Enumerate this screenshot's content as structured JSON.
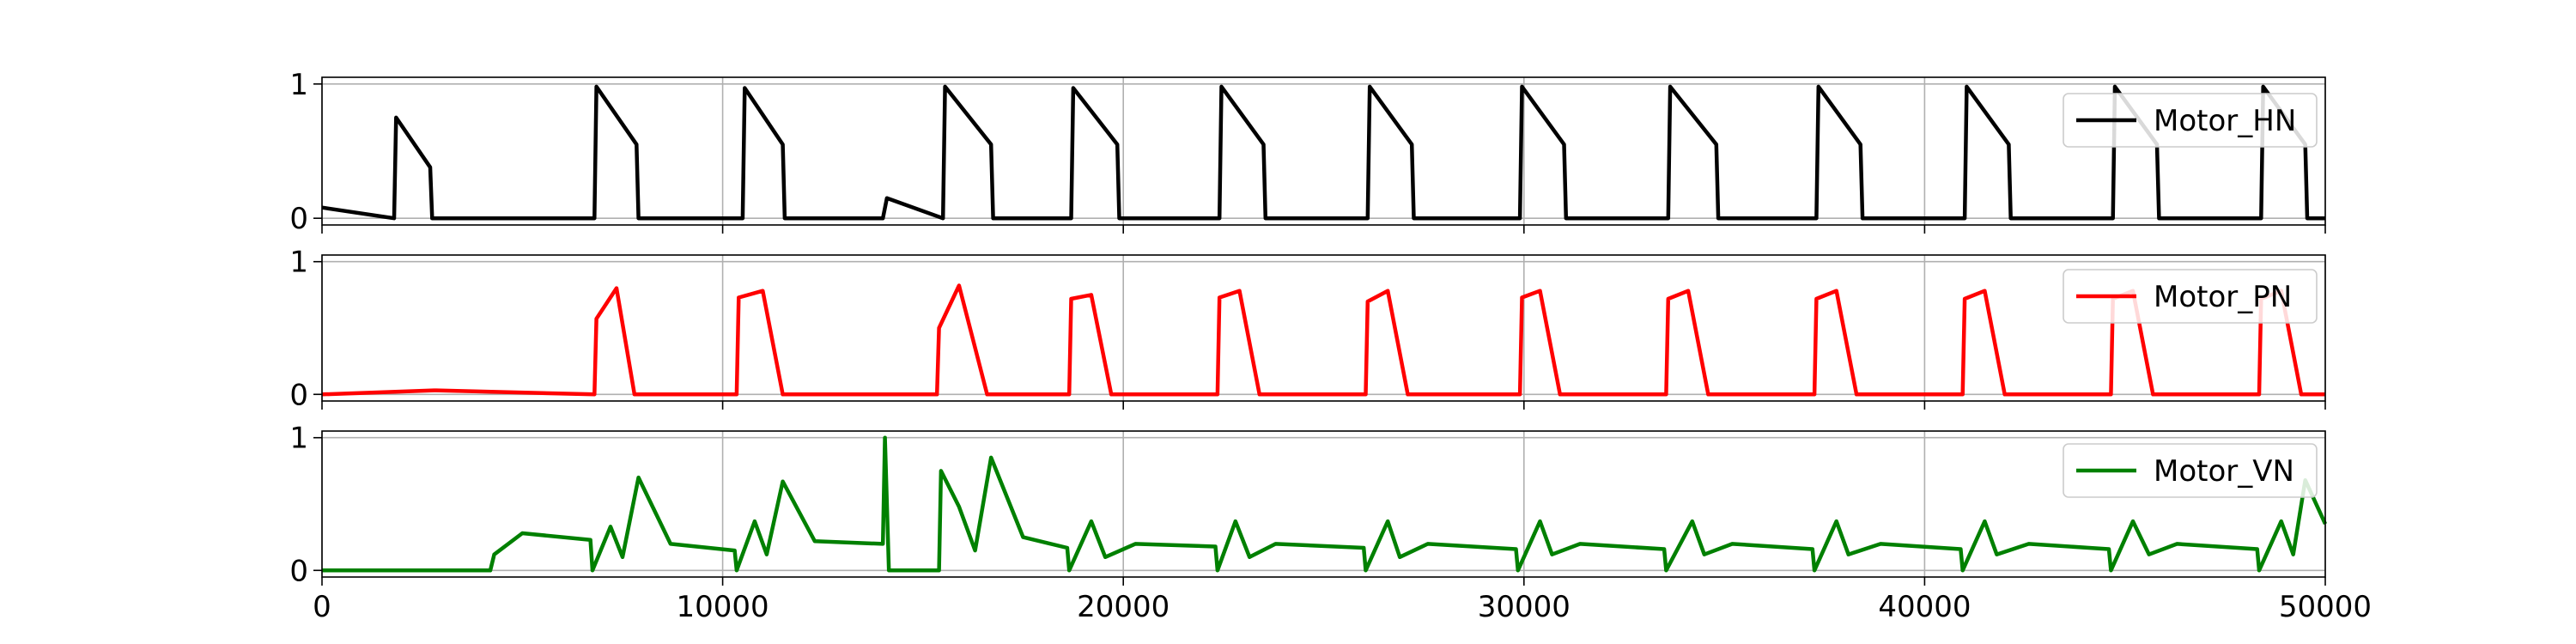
{
  "chart_data": [
    {
      "type": "line",
      "title": "",
      "xlabel": "",
      "ylabel": "",
      "xlim": [
        0,
        50000
      ],
      "ylim": [
        0,
        1
      ],
      "yticks": [
        "0",
        "1"
      ],
      "xticks": [],
      "grid": true,
      "legend_position": "top-right",
      "series": [
        {
          "name": "Motor_HN",
          "color": "#000000",
          "pattern": "rectified-burst",
          "x": [
            0,
            1800,
            1850,
            2700,
            2750,
            6800,
            6850,
            7850,
            7900,
            10500,
            10550,
            11500,
            11550,
            14000,
            14100,
            15500,
            15550,
            16700,
            16750,
            18700,
            18750,
            19850,
            19900,
            22400,
            22450,
            23500,
            23550,
            26100,
            26150,
            27200,
            27250,
            29900,
            29950,
            31000,
            31050,
            33600,
            33650,
            34800,
            34850,
            37300,
            37350,
            38400,
            38450,
            41000,
            41050,
            42100,
            42150,
            44700,
            44750,
            45800,
            45850,
            48400,
            48450,
            49500,
            49550,
            50000
          ],
          "values": [
            0.08,
            0.0,
            0.75,
            0.38,
            0.0,
            0.0,
            0.98,
            0.55,
            0.0,
            0.0,
            0.97,
            0.55,
            0.0,
            0.0,
            0.15,
            0.0,
            0.98,
            0.55,
            0.0,
            0.0,
            0.97,
            0.55,
            0.0,
            0.0,
            0.98,
            0.55,
            0.0,
            0.0,
            0.98,
            0.55,
            0.0,
            0.0,
            0.98,
            0.55,
            0.0,
            0.0,
            0.98,
            0.55,
            0.0,
            0.0,
            0.98,
            0.55,
            0.0,
            0.0,
            0.98,
            0.55,
            0.0,
            0.0,
            0.98,
            0.55,
            0.0,
            0.0,
            0.98,
            0.55,
            0.0,
            0.0
          ]
        },
        {
          "name": "Motor_PN",
          "color": "#ff0000",
          "pattern": "spike-then-bump",
          "x": [
            0,
            2800,
            6800,
            6850,
            7350,
            7800,
            10350,
            10400,
            11000,
            11500,
            15350,
            15400,
            15900,
            16600,
            18650,
            18700,
            19200,
            19700,
            22350,
            22400,
            22900,
            23400,
            26050,
            26100,
            26600,
            27100,
            29900,
            29950,
            30400,
            30900,
            33550,
            33600,
            34100,
            34600,
            37250,
            37300,
            37800,
            38300,
            40950,
            41000,
            41500,
            42000,
            44650,
            44700,
            45200,
            45700,
            48350,
            48400,
            48900,
            49400,
            50000
          ],
          "values": [
            0.0,
            0.03,
            0.0,
            0.57,
            0.8,
            0.0,
            0.0,
            0.73,
            0.78,
            0.0,
            0.0,
            0.5,
            0.82,
            0.0,
            0.0,
            0.72,
            0.75,
            0.0,
            0.0,
            0.73,
            0.78,
            0.0,
            0.0,
            0.7,
            0.78,
            0.0,
            0.0,
            0.73,
            0.78,
            0.0,
            0.0,
            0.72,
            0.78,
            0.0,
            0.0,
            0.72,
            0.78,
            0.0,
            0.0,
            0.72,
            0.78,
            0.0,
            0.0,
            0.72,
            0.78,
            0.0,
            0.0,
            0.72,
            0.78,
            0.0,
            0.0
          ]
        },
        {
          "name": "Motor_VN",
          "color": "#008000",
          "pattern": "oscillation-decay",
          "x": [
            0,
            4200,
            4300,
            5000,
            6700,
            6750,
            7200,
            7500,
            7900,
            8700,
            10300,
            10350,
            10800,
            11100,
            11500,
            12300,
            14000,
            14050,
            14150,
            15400,
            15450,
            15900,
            16300,
            16700,
            17500,
            18600,
            18650,
            19200,
            19550,
            20300,
            22300,
            22350,
            22800,
            23150,
            23800,
            26000,
            26050,
            26600,
            26900,
            27600,
            29800,
            29850,
            30400,
            30700,
            31400,
            33500,
            33550,
            34200,
            34500,
            35200,
            37200,
            37250,
            37800,
            38100,
            38900,
            40900,
            40950,
            41500,
            41800,
            42600,
            44600,
            44650,
            45200,
            45600,
            46300,
            48300,
            48350,
            48900,
            49200,
            49500,
            50000
          ],
          "values": [
            0.0,
            0.0,
            0.12,
            0.28,
            0.23,
            0.0,
            0.33,
            0.1,
            0.7,
            0.2,
            0.15,
            0.0,
            0.37,
            0.12,
            0.67,
            0.22,
            0.2,
            1.0,
            0.0,
            0.0,
            0.75,
            0.48,
            0.15,
            0.85,
            0.25,
            0.17,
            0.0,
            0.37,
            0.1,
            0.2,
            0.18,
            0.0,
            0.37,
            0.1,
            0.2,
            0.17,
            0.0,
            0.37,
            0.1,
            0.2,
            0.16,
            0.0,
            0.37,
            0.12,
            0.2,
            0.16,
            0.0,
            0.37,
            0.12,
            0.2,
            0.16,
            0.0,
            0.37,
            0.12,
            0.2,
            0.16,
            0.0,
            0.37,
            0.12,
            0.2,
            0.16,
            0.0,
            0.37,
            0.12,
            0.2,
            0.16,
            0.0,
            0.37,
            0.12,
            0.68,
            0.35
          ]
        }
      ]
    }
  ],
  "x_axis": {
    "ticks": [
      "0",
      "10000",
      "20000",
      "30000",
      "40000",
      "50000"
    ],
    "tick_values": [
      0,
      10000,
      20000,
      30000,
      40000,
      50000
    ]
  }
}
